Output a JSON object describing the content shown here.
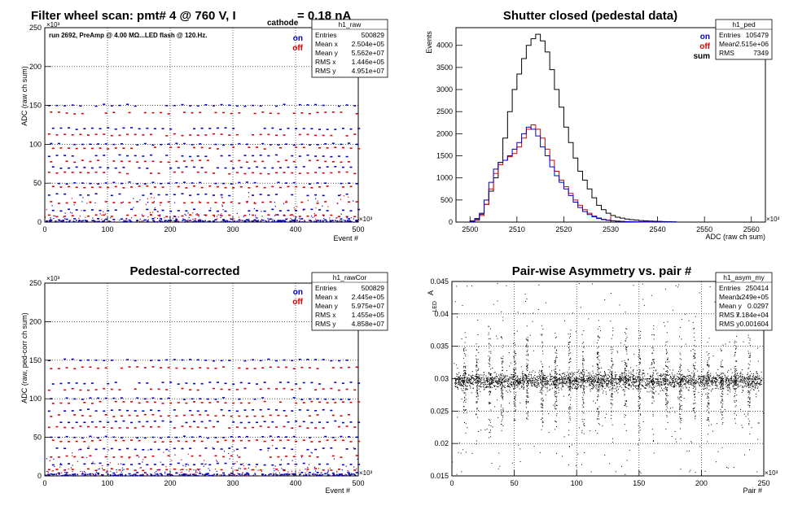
{
  "chart_data": [
    {
      "type": "scatter",
      "title": "Filter wheel scan: pmt#   4 @   760 V, I",
      "title_sub": "cathode",
      "title_tail": " = 0.18 nA",
      "annotation": "run 2692, PreAmp @ 4.00 MΩ...LED flash @  120.Hz.",
      "xlabel": "Event #",
      "ylabel": "ADC (raw ch sum)",
      "x_exponent": "×10³",
      "y_exponent": "×10³",
      "xlim": [
        0,
        500
      ],
      "ylim": [
        0,
        250
      ],
      "xticks": [
        "0",
        "100",
        "200",
        "300",
        "400",
        "500"
      ],
      "yticks": [
        "0",
        "50",
        "100",
        "150",
        "200",
        "250"
      ],
      "legend": [
        {
          "label": "on",
          "color": "#0000cc"
        },
        {
          "label": "off",
          "color": "#dd0000"
        }
      ],
      "stats": {
        "name": "h1_raw",
        "rows": [
          {
            "k": "Entries",
            "v": "500829"
          },
          {
            "k": "Mean x",
            "v": "2.504e+05"
          },
          {
            "k": "Mean y",
            "v": "5.562e+07"
          },
          {
            "k": "RMS x",
            "v": "1.446e+05"
          },
          {
            "k": "RMS y",
            "v": "4.951e+07"
          }
        ]
      },
      "levels": [
        150,
        140,
        120,
        112,
        100,
        95,
        85,
        78,
        70,
        63,
        50,
        45,
        35,
        25,
        15,
        8,
        3
      ]
    },
    {
      "type": "histogram",
      "title": "Shutter closed (pedestal data)",
      "xlabel": "ADC (raw ch sum)",
      "ylabel": "Events",
      "x_exponent": "×10³",
      "xlim": [
        2497,
        2563
      ],
      "ylim": [
        0,
        4400
      ],
      "xticks": [
        "2500",
        "2510",
        "2520",
        "2530",
        "2540",
        "2550",
        "2560"
      ],
      "yticks": [
        "0",
        "500",
        "1000",
        "1500",
        "2000",
        "2500",
        "3000",
        "3500",
        "4000"
      ],
      "legend": [
        {
          "label": "on",
          "color": "#0000cc"
        },
        {
          "label": "off",
          "color": "#dd0000"
        },
        {
          "label": "sum",
          "color": "#000000"
        }
      ],
      "stats": {
        "name": "h1_ped",
        "rows": [
          {
            "k": "Entries",
            "v": "105479"
          },
          {
            "k": "Mean",
            "v": "2.515e+06"
          },
          {
            "k": "RMS",
            "v": "7349"
          }
        ]
      },
      "bin_start": 2500,
      "bin_width": 1,
      "series": [
        {
          "name": "sum",
          "color": "#000000",
          "values": [
            30,
            80,
            180,
            400,
            700,
            1000,
            1350,
            1900,
            2500,
            3000,
            3350,
            3700,
            4000,
            4150,
            4250,
            4100,
            3850,
            3450,
            3000,
            2600,
            2150,
            1800,
            1450,
            1150,
            950,
            750,
            550,
            380,
            280,
            200,
            150,
            110,
            90,
            70,
            55,
            45,
            35,
            28,
            22,
            18,
            15,
            12,
            10,
            8
          ]
        },
        {
          "name": "on",
          "color": "#0000cc",
          "values": [
            10,
            60,
            200,
            500,
            900,
            1200,
            1350,
            1400,
            1500,
            1650,
            1800,
            2000,
            2150,
            2100,
            1950,
            1700,
            1500,
            1250,
            1050,
            900,
            750,
            600,
            450,
            330,
            240,
            170,
            120,
            80,
            55,
            40,
            28,
            20,
            15,
            12,
            10,
            8,
            6,
            5,
            4,
            3,
            2,
            2,
            1,
            1
          ]
        },
        {
          "name": "off",
          "color": "#dd0000",
          "values": [
            15,
            40,
            150,
            400,
            750,
            1100,
            1300,
            1400,
            1480,
            1550,
            1700,
            1900,
            2100,
            2200,
            2100,
            1900,
            1650,
            1400,
            1150,
            950,
            800,
            650,
            500,
            380,
            280,
            200,
            140,
            95,
            65,
            45,
            32,
            22,
            16,
            12,
            9,
            7,
            5,
            4,
            3,
            2,
            2,
            1,
            1,
            1
          ]
        }
      ]
    },
    {
      "type": "scatter",
      "title": "Pedestal-corrected",
      "xlabel": "Event #",
      "ylabel": "ADC (raw, ped-corr ch sum)",
      "x_exponent": "×10³",
      "y_exponent": "×10³",
      "xlim": [
        0,
        500
      ],
      "ylim": [
        0,
        250
      ],
      "xticks": [
        "0",
        "100",
        "200",
        "300",
        "400",
        "500"
      ],
      "yticks": [
        "0",
        "50",
        "100",
        "150",
        "200",
        "250"
      ],
      "legend": [
        {
          "label": "on",
          "color": "#0000cc"
        },
        {
          "label": "off",
          "color": "#dd0000"
        }
      ],
      "stats": {
        "name": "h1_rawCor",
        "rows": [
          {
            "k": "Entries",
            "v": "500829"
          },
          {
            "k": "Mean x",
            "v": "2.445e+05"
          },
          {
            "k": "Mean y",
            "v": "5.975e+07"
          },
          {
            "k": "RMS x",
            "v": "1.455e+05"
          },
          {
            "k": "RMS y",
            "v": "4.858e+07"
          }
        ]
      },
      "levels": [
        150,
        140,
        120,
        112,
        100,
        95,
        85,
        78,
        70,
        63,
        50,
        45,
        35,
        25,
        15,
        8,
        3
      ]
    },
    {
      "type": "scatter",
      "title": "Pair-wise Asymmetry vs. pair #",
      "xlabel": "Pair #",
      "ylabel": "A",
      "ylabel_sub": "LED",
      "x_exponent": "×10³",
      "xlim": [
        0,
        250
      ],
      "ylim": [
        0.015,
        0.045
      ],
      "xticks": [
        "0",
        "50",
        "100",
        "150",
        "200",
        "250"
      ],
      "yticks": [
        "0.015",
        "0.02",
        "0.025",
        "0.03",
        "0.035",
        "0.04",
        "0.045"
      ],
      "stats": {
        "name": "h1_asym_my",
        "rows": [
          {
            "k": "Entries",
            "v": "250414"
          },
          {
            "k": "Mean x",
            "v": "1.249e+05"
          },
          {
            "k": "Mean y",
            "v": "0.0297"
          },
          {
            "k": "RMS x",
            "v": "7.184e+04"
          },
          {
            "k": "RMS y",
            "v": "0.001604"
          }
        ]
      },
      "center": 0.0297,
      "band_halfwidth": 0.0012,
      "spike_x": [
        10,
        20,
        30,
        40,
        50,
        60,
        72,
        83,
        94,
        105,
        117,
        128,
        139,
        150,
        161,
        172,
        183,
        194,
        205,
        216,
        227,
        238
      ]
    }
  ]
}
